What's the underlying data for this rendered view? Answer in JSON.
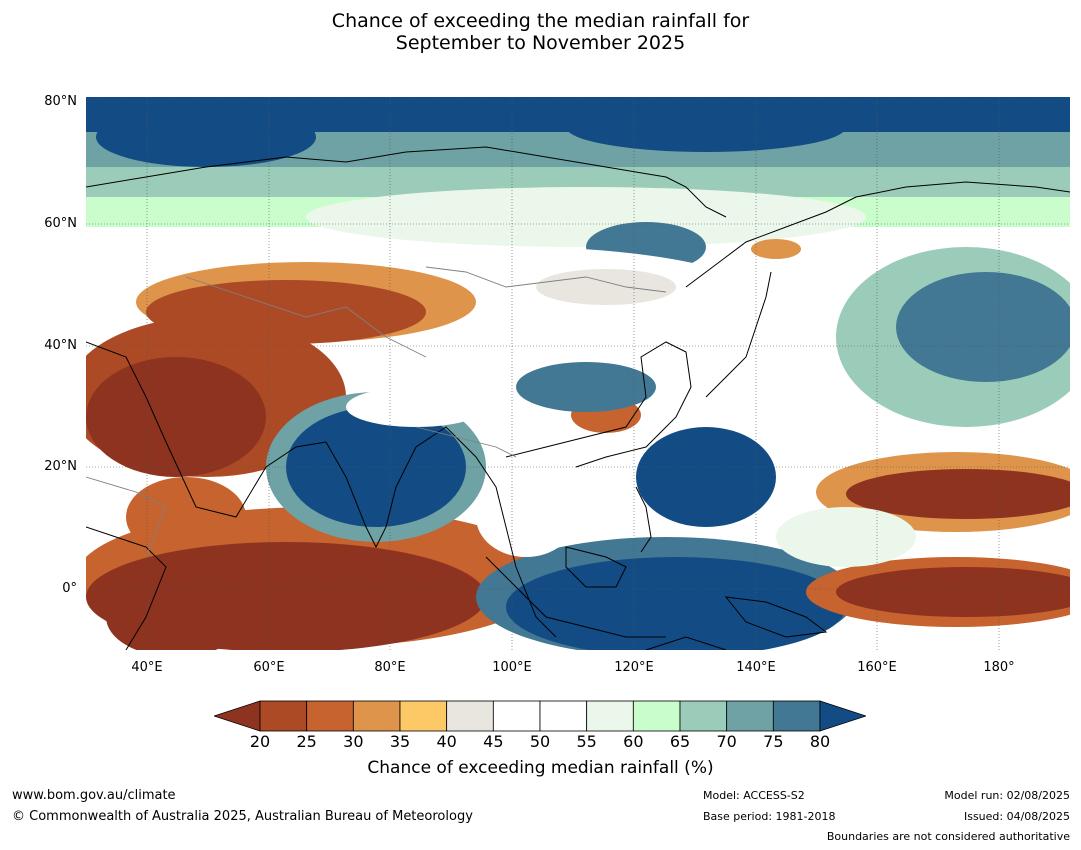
{
  "title": {
    "line1": "Chance of exceeding the median rainfall for",
    "line2": "September to November 2025"
  },
  "map": {
    "lat_labels": [
      "80°N",
      "60°N",
      "40°N",
      "20°N",
      "0°"
    ],
    "lon_labels": [
      "40°E",
      "60°E",
      "80°E",
      "100°E",
      "120°E",
      "140°E",
      "160°E",
      "180°"
    ],
    "colors": {
      "c20": "#8e3320",
      "c25": "#ad4a26",
      "c30": "#c6632e",
      "c35": "#de944a",
      "c40": "#fcc966",
      "c45": "#e9e6e0",
      "c50": "#ffffff",
      "c55": "#ffffff",
      "c60": "#ebf7ea",
      "c65": "#c9fdcb",
      "c70": "#9bccb9",
      "c75": "#6ea2a4",
      "c80": "#427894",
      "c85": "#134c84",
      "coast": "#000000",
      "border": "#808080"
    }
  },
  "colorbar": {
    "ticks": [
      "20",
      "25",
      "30",
      "35",
      "40",
      "45",
      "50",
      "55",
      "60",
      "65",
      "70",
      "75",
      "80"
    ],
    "colors": [
      "#ad4a26",
      "#c6632e",
      "#de944a",
      "#fcc966",
      "#e9e6e0",
      "#ffffff",
      "#ffffff",
      "#ebf7ea",
      "#c9fdcb",
      "#9bccb9",
      "#6ea2a4",
      "#427894"
    ],
    "low_color": "#8e3320",
    "high_color": "#134c84",
    "label": "Chance of exceeding median rainfall (%)"
  },
  "footer": {
    "url": "www.bom.gov.au/climate",
    "copyright": "© Commonwealth of Australia 2025, Australian Bureau of Meteorology",
    "model": "Model: ACCESS-S2",
    "base_period": "Base period: 1981-2018",
    "model_run": "Model run: 02/08/2025",
    "issued": "Issued: 04/08/2025",
    "disclaimer": "Boundaries are not considered authoritative"
  }
}
